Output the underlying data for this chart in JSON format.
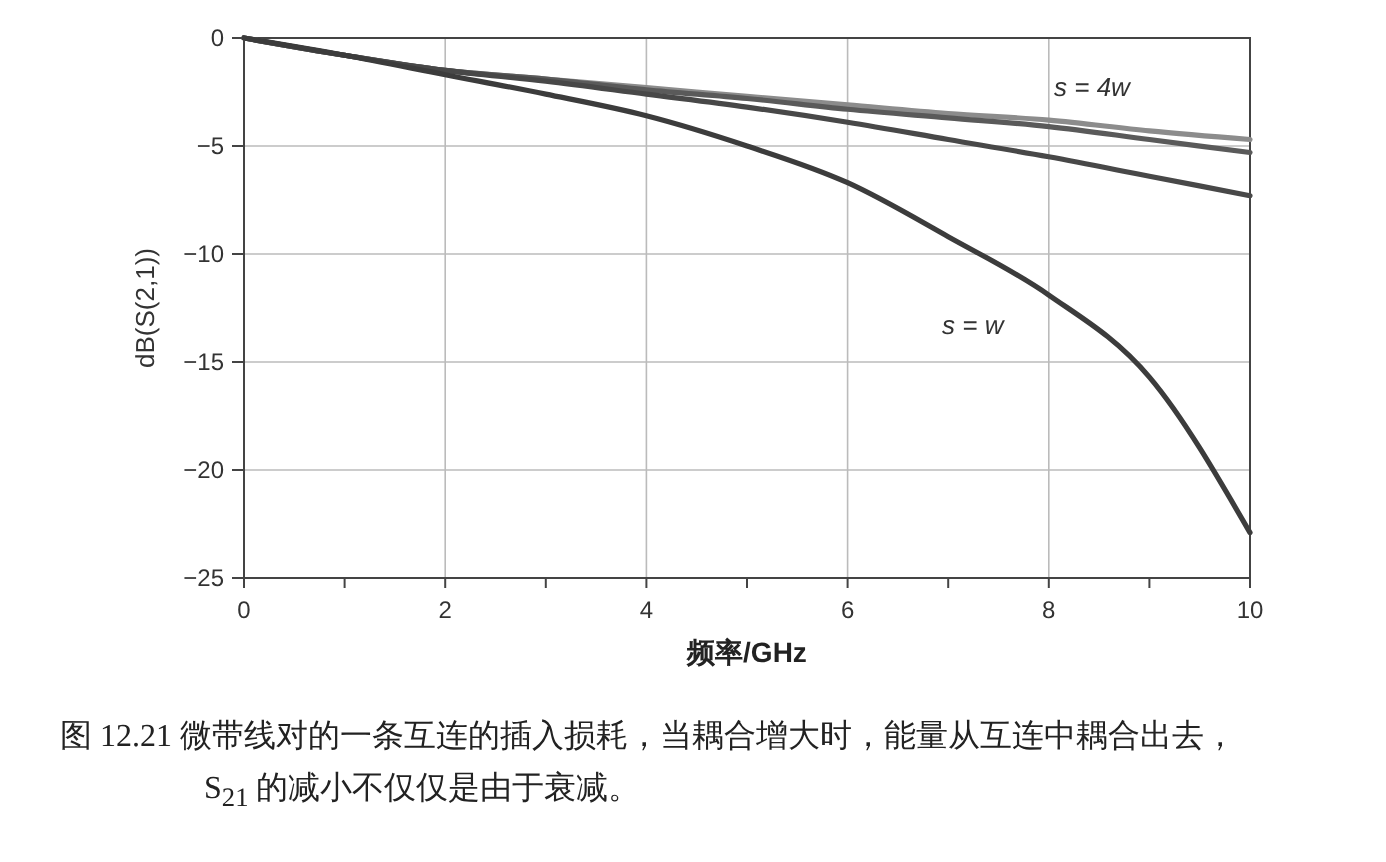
{
  "chart_data": {
    "type": "line",
    "xlabel": "频率/GHz",
    "ylabel": "dB(S(2,1))",
    "x": [
      0,
      1,
      2,
      3,
      4,
      5,
      6,
      7,
      8,
      9,
      10
    ],
    "series": [
      {
        "color": "#8c8c8c",
        "values": [
          0,
          -0.8,
          -1.5,
          -1.9,
          -2.3,
          -2.7,
          -3.1,
          -3.5,
          -3.8,
          -4.3,
          -4.7
        ]
      },
      {
        "color": "#5a5a5a",
        "values": [
          0,
          -0.8,
          -1.5,
          -1.9,
          -2.4,
          -2.8,
          -3.3,
          -3.7,
          -4.1,
          -4.7,
          -5.3
        ]
      },
      {
        "color": "#484848",
        "values": [
          0,
          -0.8,
          -1.5,
          -2.0,
          -2.6,
          -3.2,
          -3.9,
          -4.7,
          -5.5,
          -6.4,
          -7.3
        ]
      },
      {
        "color": "#3c3c3c",
        "values": [
          0,
          -0.8,
          -1.7,
          -2.6,
          -3.6,
          -5.0,
          -6.7,
          -9.2,
          -11.9,
          -15.7,
          -22.9
        ]
      }
    ],
    "xlim": [
      0,
      10
    ],
    "ylim": [
      -25,
      0
    ],
    "xticks": [
      0,
      {
        "value": 1,
        "label": null
      },
      2,
      {
        "value": 3,
        "label": null
      },
      4,
      {
        "value": 5,
        "label": null
      },
      6,
      {
        "value": 7,
        "label": null
      },
      8,
      {
        "value": 9,
        "label": null
      },
      10
    ],
    "yticks": [
      0,
      -5,
      -10,
      -15,
      -20,
      -25
    ],
    "grid": true,
    "marker": "none",
    "line_style": "solid",
    "annotations": [
      "s = 4w",
      "s = w",
      "图 12.21  微带线对的一条互连的插入损耗，当耦合增大时，能量从互连中耦合出去，S$_{21}$ 的减小不仅仅是由于衰减。"
    ]
  }
}
